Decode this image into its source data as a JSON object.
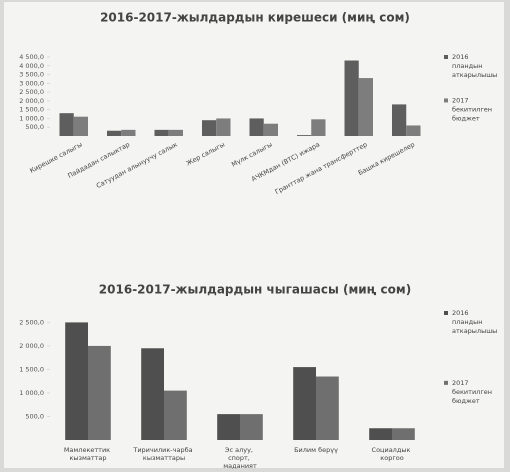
{
  "chart_data": [
    {
      "type": "bar",
      "title": "2016-2017-жылдардын кирешеси (миң сом)",
      "categories": [
        "Кирешке салыгы",
        "Пайдадан салыктар",
        "Сатуудан алынуучу салык",
        "Жер салыгы",
        "Мүлк салыгы",
        "АЧКМдан (ВТС) ижара",
        "Гранттар жана трансферттер",
        "Башка кирешелер"
      ],
      "series": [
        {
          "name": "2016 пландын аткарылышы",
          "color": "#5e5e5e",
          "values": [
            1300,
            300,
            350,
            900,
            1000,
            50,
            4300,
            1800
          ]
        },
        {
          "name": "2017 бекитилген бюджет",
          "color": "#7d7d7d",
          "values": [
            1100,
            350,
            350,
            1000,
            700,
            950,
            3300,
            600
          ]
        }
      ],
      "ylim": [
        0,
        4500
      ],
      "yticks": [
        {
          "value": 500,
          "label": "500,0"
        },
        {
          "value": 1000,
          "label": "1 000,0"
        },
        {
          "value": 1500,
          "label": "1 500,0"
        },
        {
          "value": 2000,
          "label": "2 000,0"
        },
        {
          "value": 2500,
          "label": "2 500,0"
        },
        {
          "value": 3000,
          "label": "3 000,0"
        },
        {
          "value": 3500,
          "label": "3 500,0"
        },
        {
          "value": 4000,
          "label": "4 000,0"
        },
        {
          "value": 4500,
          "label": "4 500,0"
        }
      ],
      "legend": "right",
      "category_labels": "rotated"
    },
    {
      "type": "bar",
      "title": "2016-2017-жылдардын чыгашасы (миң сом)",
      "categories": [
        "Мамлекеттик кызматтар",
        "Тиричилик-чарба кызматтары",
        "Эс алуу, спорт, маданият",
        "Билим берүү",
        "Социалдык коргоо"
      ],
      "series": [
        {
          "name": "2016 пландын аткарылышы",
          "color": "#4f4f4f",
          "values": [
            2500,
            1950,
            550,
            1550,
            250
          ]
        },
        {
          "name": "2017 бекитилген бюджет",
          "color": "#6f6f6f",
          "values": [
            2000,
            1050,
            550,
            1350,
            250
          ]
        }
      ],
      "ylim": [
        0,
        2700
      ],
      "yticks": [
        {
          "value": 500,
          "label": "500,0"
        },
        {
          "value": 1000,
          "label": "1 000,0"
        },
        {
          "value": 1500,
          "label": "1 500,0"
        },
        {
          "value": 2000,
          "label": "2 000,0"
        },
        {
          "value": 2500,
          "label": "2 500,0"
        }
      ],
      "legend": "right",
      "category_labels": "wrapped"
    }
  ]
}
